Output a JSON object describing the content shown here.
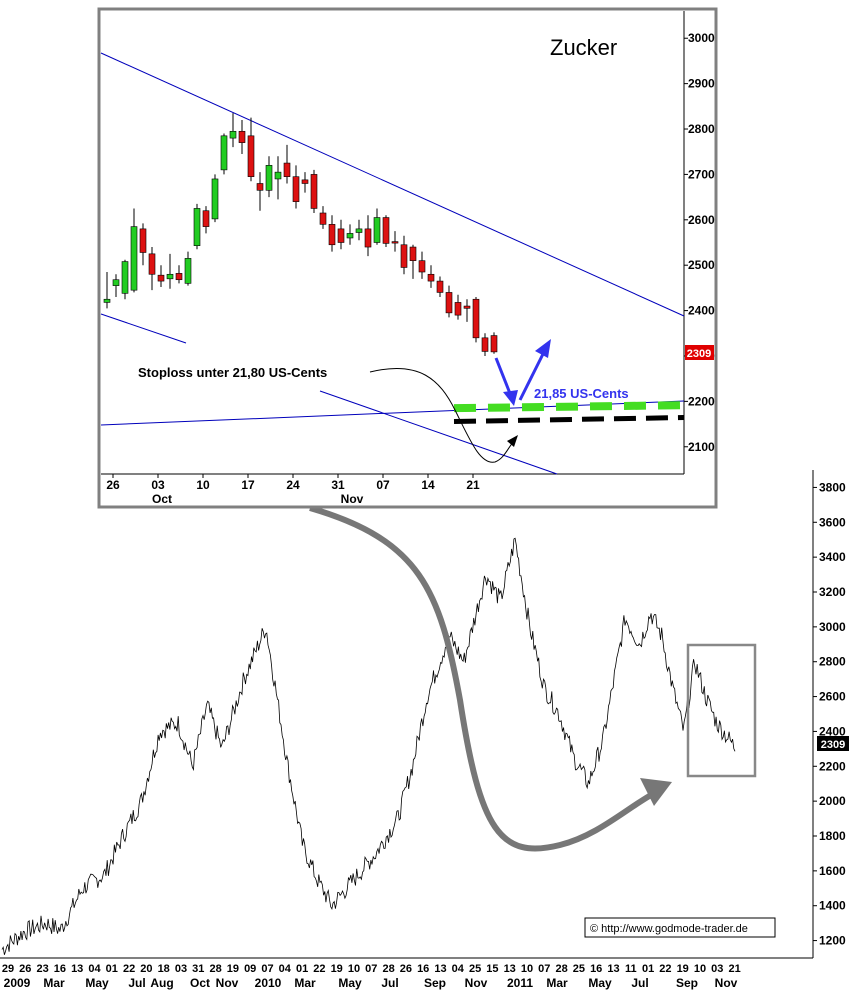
{
  "chart_data": [
    {
      "type": "candlestick",
      "title": "Zucker",
      "price_unit": "US-Cents",
      "ylim": [
        2040,
        3060
      ],
      "y_ticks": [
        2100,
        2200,
        2300,
        2400,
        2500,
        2600,
        2700,
        2800,
        2900,
        3000
      ],
      "x_tick_labels": [
        "26",
        "03",
        "10",
        "17",
        "24",
        "31",
        "07",
        "14",
        "21"
      ],
      "x_month_labels": [
        "Oct",
        "Nov"
      ],
      "last_price": "2309",
      "last_price_color": "#e00000",
      "up_color": "#22cc22",
      "down_color": "#dd1111",
      "candles": [
        {
          "o": 2418,
          "h": 2485,
          "l": 2405,
          "c": 2425
        },
        {
          "o": 2455,
          "h": 2480,
          "l": 2430,
          "c": 2468
        },
        {
          "o": 2438,
          "h": 2512,
          "l": 2425,
          "c": 2508
        },
        {
          "o": 2445,
          "h": 2625,
          "l": 2440,
          "c": 2585
        },
        {
          "o": 2580,
          "h": 2592,
          "l": 2500,
          "c": 2528
        },
        {
          "o": 2525,
          "h": 2540,
          "l": 2445,
          "c": 2480
        },
        {
          "o": 2478,
          "h": 2500,
          "l": 2452,
          "c": 2465
        },
        {
          "o": 2470,
          "h": 2525,
          "l": 2448,
          "c": 2480
        },
        {
          "o": 2482,
          "h": 2500,
          "l": 2460,
          "c": 2468
        },
        {
          "o": 2460,
          "h": 2530,
          "l": 2455,
          "c": 2515
        },
        {
          "o": 2543,
          "h": 2635,
          "l": 2535,
          "c": 2625
        },
        {
          "o": 2620,
          "h": 2630,
          "l": 2570,
          "c": 2585
        },
        {
          "o": 2602,
          "h": 2700,
          "l": 2595,
          "c": 2690
        },
        {
          "o": 2710,
          "h": 2790,
          "l": 2700,
          "c": 2785
        },
        {
          "o": 2780,
          "h": 2835,
          "l": 2760,
          "c": 2795
        },
        {
          "o": 2795,
          "h": 2820,
          "l": 2745,
          "c": 2770
        },
        {
          "o": 2785,
          "h": 2825,
          "l": 2685,
          "c": 2695
        },
        {
          "o": 2680,
          "h": 2705,
          "l": 2620,
          "c": 2665
        },
        {
          "o": 2665,
          "h": 2740,
          "l": 2650,
          "c": 2720
        },
        {
          "o": 2690,
          "h": 2740,
          "l": 2645,
          "c": 2705
        },
        {
          "o": 2725,
          "h": 2765,
          "l": 2680,
          "c": 2695
        },
        {
          "o": 2695,
          "h": 2720,
          "l": 2625,
          "c": 2640
        },
        {
          "o": 2688,
          "h": 2705,
          "l": 2660,
          "c": 2680
        },
        {
          "o": 2700,
          "h": 2710,
          "l": 2615,
          "c": 2625
        },
        {
          "o": 2615,
          "h": 2630,
          "l": 2580,
          "c": 2590
        },
        {
          "o": 2590,
          "h": 2610,
          "l": 2530,
          "c": 2545
        },
        {
          "o": 2580,
          "h": 2600,
          "l": 2535,
          "c": 2550
        },
        {
          "o": 2560,
          "h": 2590,
          "l": 2545,
          "c": 2570
        },
        {
          "o": 2572,
          "h": 2600,
          "l": 2555,
          "c": 2580
        },
        {
          "o": 2580,
          "h": 2610,
          "l": 2520,
          "c": 2540
        },
        {
          "o": 2550,
          "h": 2625,
          "l": 2545,
          "c": 2605
        },
        {
          "o": 2605,
          "h": 2610,
          "l": 2540,
          "c": 2548
        },
        {
          "o": 2552,
          "h": 2575,
          "l": 2530,
          "c": 2550
        },
        {
          "o": 2545,
          "h": 2565,
          "l": 2480,
          "c": 2495
        },
        {
          "o": 2540,
          "h": 2545,
          "l": 2470,
          "c": 2510
        },
        {
          "o": 2510,
          "h": 2530,
          "l": 2470,
          "c": 2485
        },
        {
          "o": 2480,
          "h": 2500,
          "l": 2450,
          "c": 2465
        },
        {
          "o": 2465,
          "h": 2475,
          "l": 2430,
          "c": 2440
        },
        {
          "o": 2440,
          "h": 2455,
          "l": 2385,
          "c": 2395
        },
        {
          "o": 2418,
          "h": 2435,
          "l": 2380,
          "c": 2390
        },
        {
          "o": 2410,
          "h": 2425,
          "l": 2375,
          "c": 2405
        },
        {
          "o": 2425,
          "h": 2430,
          "l": 2330,
          "c": 2340
        },
        {
          "o": 2340,
          "h": 2350,
          "l": 2300,
          "c": 2310
        },
        {
          "o": 2345,
          "h": 2352,
          "l": 2305,
          "c": 2309
        }
      ],
      "annotations": {
        "stoploss_text": "Stoploss unter 21,80 US-Cents",
        "target_text": "21,85 US-Cents",
        "target_color": "#3333ee"
      },
      "levels": [
        {
          "value": 2185,
          "color": "#44dd22",
          "style": "dashed"
        },
        {
          "value": 2160,
          "color": "#000000",
          "style": "dashed"
        }
      ]
    },
    {
      "type": "line",
      "ylim": [
        1100,
        3900
      ],
      "y_ticks": [
        1200,
        1400,
        1600,
        1800,
        2000,
        2200,
        2400,
        2600,
        2800,
        3000,
        3200,
        3400,
        3600,
        3800
      ],
      "last_value": "2309",
      "x_day_labels": [
        "29",
        "26",
        "23",
        "16",
        "13",
        "04",
        "01",
        "22",
        "20",
        "18",
        "03",
        "31",
        "28",
        "19",
        "09",
        "07",
        "04",
        "01",
        "22",
        "19",
        "10",
        "07",
        "28",
        "26",
        "16",
        "13",
        "04",
        "25",
        "15",
        "13",
        "10",
        "07",
        "28",
        "25",
        "16",
        "13",
        "11",
        "01",
        "22",
        "19",
        "10",
        "03",
        "21"
      ],
      "x_month_labels": [
        "2009",
        "Mar",
        "May",
        "Jul",
        "Aug",
        "Oct",
        "Nov",
        "2010",
        "Mar",
        "May",
        "Jul",
        "Sep",
        "Nov",
        "2011",
        "Mar",
        "May",
        "Jul",
        "Sep",
        "Nov"
      ],
      "series_anchors": [
        {
          "t": 0,
          "v": 1150
        },
        {
          "t": 0.03,
          "v": 1250
        },
        {
          "t": 0.06,
          "v": 1300
        },
        {
          "t": 0.08,
          "v": 1260
        },
        {
          "t": 0.11,
          "v": 1500
        },
        {
          "t": 0.14,
          "v": 1580
        },
        {
          "t": 0.165,
          "v": 1800
        },
        {
          "t": 0.19,
          "v": 2000
        },
        {
          "t": 0.215,
          "v": 2400
        },
        {
          "t": 0.24,
          "v": 2450
        },
        {
          "t": 0.26,
          "v": 2200
        },
        {
          "t": 0.28,
          "v": 2550
        },
        {
          "t": 0.3,
          "v": 2300
        },
        {
          "t": 0.33,
          "v": 2700
        },
        {
          "t": 0.36,
          "v": 3000
        },
        {
          "t": 0.39,
          "v": 2200
        },
        {
          "t": 0.41,
          "v": 1750
        },
        {
          "t": 0.43,
          "v": 1550
        },
        {
          "t": 0.45,
          "v": 1400
        },
        {
          "t": 0.48,
          "v": 1550
        },
        {
          "t": 0.51,
          "v": 1700
        },
        {
          "t": 0.54,
          "v": 1900
        },
        {
          "t": 0.56,
          "v": 2200
        },
        {
          "t": 0.58,
          "v": 2600
        },
        {
          "t": 0.61,
          "v": 2950
        },
        {
          "t": 0.63,
          "v": 2800
        },
        {
          "t": 0.66,
          "v": 3300
        },
        {
          "t": 0.68,
          "v": 3150
        },
        {
          "t": 0.7,
          "v": 3500
        },
        {
          "t": 0.72,
          "v": 3000
        },
        {
          "t": 0.74,
          "v": 2650
        },
        {
          "t": 0.76,
          "v": 2500
        },
        {
          "t": 0.78,
          "v": 2250
        },
        {
          "t": 0.8,
          "v": 2100
        },
        {
          "t": 0.82,
          "v": 2350
        },
        {
          "t": 0.85,
          "v": 3050
        },
        {
          "t": 0.87,
          "v": 2900
        },
        {
          "t": 0.885,
          "v": 3080
        },
        {
          "t": 0.9,
          "v": 2950
        },
        {
          "t": 0.915,
          "v": 2650
        },
        {
          "t": 0.93,
          "v": 2400
        },
        {
          "t": 0.945,
          "v": 2800
        },
        {
          "t": 0.96,
          "v": 2600
        },
        {
          "t": 0.975,
          "v": 2450
        },
        {
          "t": 1.0,
          "v": 2309
        }
      ]
    }
  ],
  "copyright": "© http://www.godmode-trader.de"
}
